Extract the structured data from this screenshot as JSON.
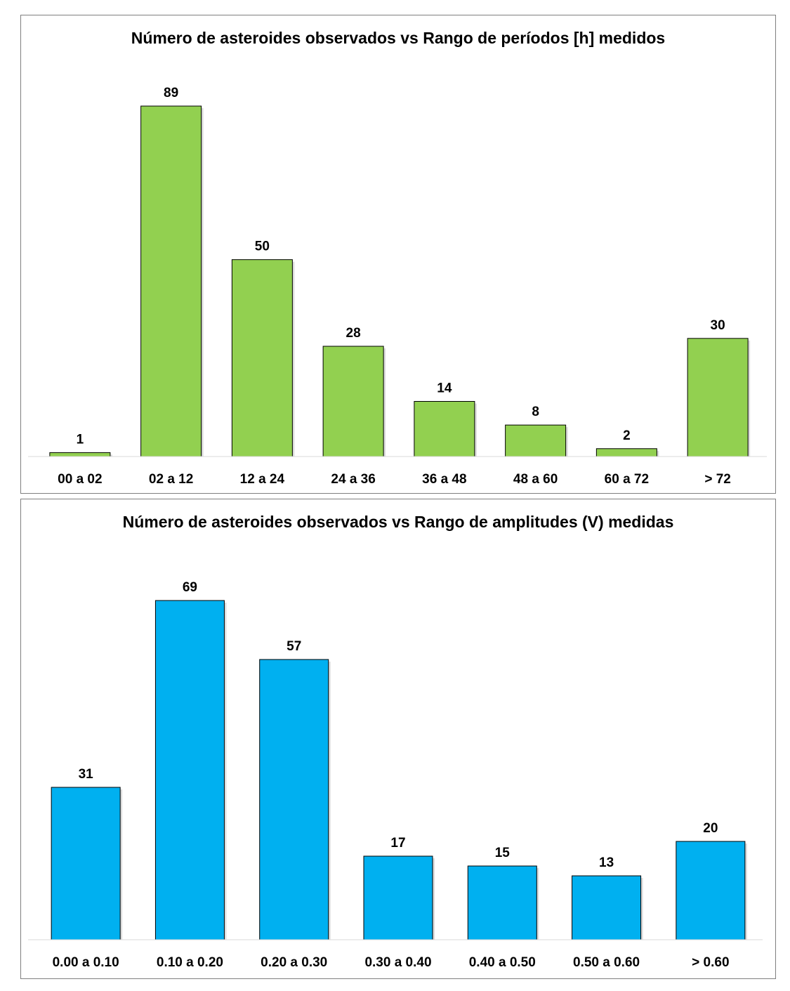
{
  "chart_data": [
    {
      "type": "bar",
      "title": "Número de asteroides observados vs Rango de períodos [h] medidos",
      "categories": [
        "00 a 02",
        "02 a 12",
        "12 a 24",
        "24 a 36",
        "36 a 48",
        "48 a 60",
        "60 a 72",
        "> 72"
      ],
      "values": [
        1,
        89,
        50,
        28,
        14,
        8,
        2,
        30
      ],
      "data_labels": [
        "1",
        "89",
        "50",
        "28",
        "14",
        "8",
        "2",
        "30"
      ],
      "bar_color": "#92d050",
      "ylim": [
        0,
        89
      ],
      "grid": false,
      "legend": "none"
    },
    {
      "type": "bar",
      "title": "Número de asteroides observados vs Rango de amplitudes (V) medidas",
      "categories": [
        "0.00 a 0.10",
        "0.10 a 0.20",
        "0.20 a 0.30",
        "0.30 a 0.40",
        "0.40 a 0.50",
        "0.50 a 0.60",
        "> 0.60"
      ],
      "values": [
        31,
        69,
        57,
        17,
        15,
        13,
        20
      ],
      "data_labels": [
        "31",
        "69",
        "57",
        "17",
        "15",
        "13",
        "20"
      ],
      "bar_color": "#00b0f0",
      "ylim": [
        0,
        69
      ],
      "grid": false,
      "legend": "none"
    }
  ]
}
